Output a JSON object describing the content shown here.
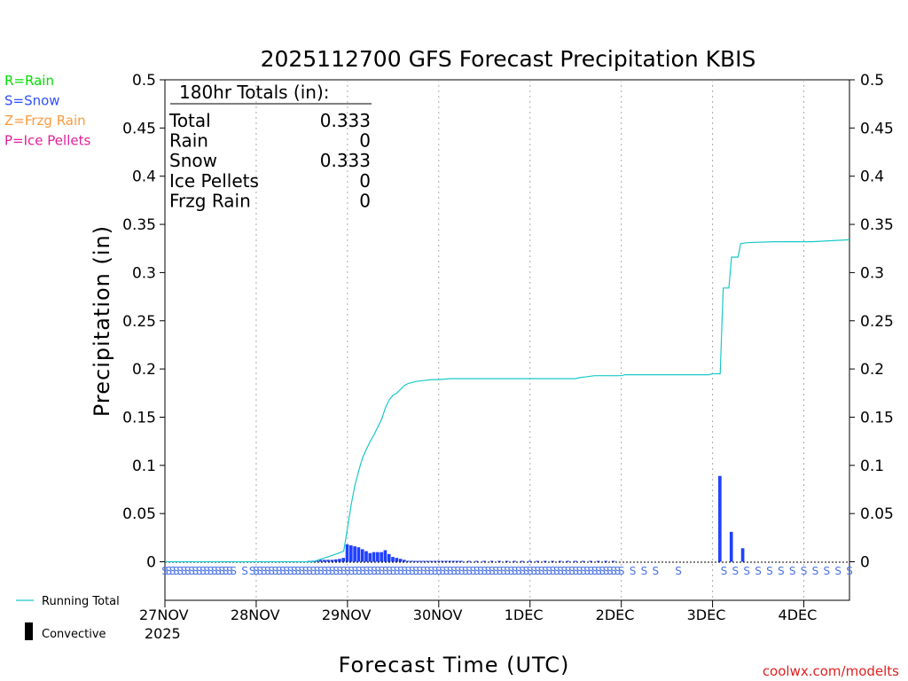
{
  "chart_data": {
    "type": "bar",
    "title": "2025112700 GFS Forecast Precipitation KBIS",
    "xlabel": "Forecast Time (UTC)",
    "ylabel": "Precipitation (in)",
    "ylim": [
      -0.04,
      0.5
    ],
    "xlim_hours": [
      0,
      180
    ],
    "grid": "vertical dotted lines at each day",
    "y_ticks": [
      "0",
      "0.05",
      "0.1",
      "0.15",
      "0.2",
      "0.25",
      "0.3",
      "0.35",
      "0.4",
      "0.45",
      "0.5"
    ],
    "x_ticks": [
      {
        "label": "27NOV",
        "hour": 0
      },
      {
        "label": "28NOV",
        "hour": 24
      },
      {
        "label": "29NOV",
        "hour": 48
      },
      {
        "label": "30NOV",
        "hour": 72
      },
      {
        "label": "1DEC",
        "hour": 96
      },
      {
        "label": "2DEC",
        "hour": 120
      },
      {
        "label": "3DEC",
        "hour": 144
      },
      {
        "label": "4DEC",
        "hour": 168
      }
    ],
    "year_label": "2025",
    "legend_types": [
      {
        "label": "R=Rain",
        "color": "#00e000"
      },
      {
        "label": "S=Snow",
        "color": "#3050ff"
      },
      {
        "label": "Z=Frzg Rain",
        "color": "#ff9a3c"
      },
      {
        "label": "P=Ice Pellets",
        "color": "#e0209a"
      }
    ],
    "legend_lines": [
      {
        "label": "Running Total",
        "color": "#1ac8c8"
      },
      {
        "label": "Convective",
        "color": "#000000"
      }
    ],
    "totals": {
      "header": "180hr Totals (in):",
      "rows": [
        {
          "label": "Total",
          "value": "0.333"
        },
        {
          "label": "Rain",
          "value": "0"
        },
        {
          "label": "Snow",
          "value": "0.333"
        },
        {
          "label": "Ice Pellets",
          "value": "0"
        },
        {
          "label": "Frzg Rain",
          "value": "0"
        }
      ]
    },
    "series": [
      {
        "name": "Snow (hourly precipitation)",
        "color": "#2040ff",
        "bar_width_hours": 1,
        "points": [
          [
            38,
            0.0005
          ],
          [
            39,
            0.001
          ],
          [
            40,
            0.0015
          ],
          [
            41,
            0.002
          ],
          [
            42,
            0.002
          ],
          [
            43,
            0.002
          ],
          [
            44,
            0.002
          ],
          [
            45,
            0.0025
          ],
          [
            46,
            0.003
          ],
          [
            47,
            0.004
          ],
          [
            48,
            0.018
          ],
          [
            49,
            0.017
          ],
          [
            50,
            0.016
          ],
          [
            51,
            0.015
          ],
          [
            52,
            0.013
          ],
          [
            53,
            0.011
          ],
          [
            54,
            0.009
          ],
          [
            55,
            0.01
          ],
          [
            56,
            0.01
          ],
          [
            57,
            0.01
          ],
          [
            58,
            0.012
          ],
          [
            59,
            0.008
          ],
          [
            60,
            0.005
          ],
          [
            61,
            0.004
          ],
          [
            62,
            0.003
          ],
          [
            63,
            0.002
          ],
          [
            64,
            0.001
          ],
          [
            65,
            0.001
          ],
          [
            66,
            0.0005
          ],
          [
            67,
            0.0005
          ],
          [
            68,
            0.0005
          ],
          [
            69,
            0.0005
          ],
          [
            70,
            0.0005
          ],
          [
            71,
            0.0005
          ],
          [
            72,
            0.0005
          ],
          [
            73,
            0.0005
          ],
          [
            74,
            0.0005
          ],
          [
            75,
            0.0005
          ],
          [
            76,
            0.0005
          ],
          [
            77,
            0.0005
          ],
          [
            78,
            0.0005
          ],
          [
            80,
            0.0005
          ],
          [
            82,
            0.0005
          ],
          [
            84,
            0.0005
          ],
          [
            86,
            0.0005
          ],
          [
            88,
            0.0005
          ],
          [
            90,
            0.0005
          ],
          [
            92,
            0.0005
          ],
          [
            94,
            0.0005
          ],
          [
            96,
            0.0005
          ],
          [
            98,
            0.0005
          ],
          [
            100,
            0.0005
          ],
          [
            102,
            0.0005
          ],
          [
            104,
            0.0005
          ],
          [
            106,
            0.0005
          ],
          [
            108,
            0.0005
          ],
          [
            110,
            0.0005
          ],
          [
            112,
            0.0005
          ],
          [
            114,
            0.0005
          ],
          [
            116,
            0.0005
          ],
          [
            118,
            0.0005
          ],
          [
            146,
            0.089
          ],
          [
            149,
            0.031
          ],
          [
            152,
            0.014
          ]
        ]
      },
      {
        "name": "Running Total",
        "color": "#1ac8c8",
        "points": [
          [
            0,
            0
          ],
          [
            39,
            0
          ],
          [
            42,
            0.004
          ],
          [
            45,
            0.008
          ],
          [
            47,
            0.011
          ],
          [
            48,
            0.035
          ],
          [
            49,
            0.06
          ],
          [
            50,
            0.08
          ],
          [
            51,
            0.095
          ],
          [
            52,
            0.108
          ],
          [
            53,
            0.117
          ],
          [
            54,
            0.125
          ],
          [
            55,
            0.132
          ],
          [
            56,
            0.14
          ],
          [
            57,
            0.148
          ],
          [
            58,
            0.16
          ],
          [
            59,
            0.168
          ],
          [
            60,
            0.173
          ],
          [
            61,
            0.175
          ],
          [
            62,
            0.179
          ],
          [
            63,
            0.183
          ],
          [
            64,
            0.185
          ],
          [
            66,
            0.187
          ],
          [
            68,
            0.188
          ],
          [
            70,
            0.189
          ],
          [
            72,
            0.189
          ],
          [
            75,
            0.19
          ],
          [
            90,
            0.19
          ],
          [
            108,
            0.19
          ],
          [
            109,
            0.191
          ],
          [
            111,
            0.192
          ],
          [
            113,
            0.193
          ],
          [
            120,
            0.193
          ],
          [
            121,
            0.194
          ],
          [
            134,
            0.194
          ],
          [
            143,
            0.194
          ],
          [
            144,
            0.195
          ],
          [
            146,
            0.195
          ],
          [
            146.8,
            0.284
          ],
          [
            148.3,
            0.284
          ],
          [
            149,
            0.316
          ],
          [
            150.7,
            0.316
          ],
          [
            151.4,
            0.33
          ],
          [
            153,
            0.331
          ],
          [
            160,
            0.332
          ],
          [
            170,
            0.332
          ],
          [
            180,
            0.334
          ]
        ]
      }
    ],
    "ptype_markers": {
      "color": "#4a72e8",
      "glyph": "S",
      "hours": [
        0,
        1,
        2,
        3,
        4,
        5,
        6,
        7,
        8,
        9,
        10,
        11,
        12,
        13,
        14,
        15,
        16,
        17,
        18,
        21,
        23,
        24,
        25,
        26,
        27,
        28,
        29,
        30,
        31,
        32,
        33,
        34,
        35,
        36,
        37,
        38,
        39,
        40,
        41,
        42,
        43,
        44,
        45,
        46,
        47,
        48,
        49,
        50,
        51,
        52,
        53,
        54,
        55,
        56,
        57,
        58,
        59,
        60,
        61,
        62,
        63,
        64,
        65,
        66,
        67,
        68,
        69,
        70,
        71,
        72,
        73,
        74,
        75,
        76,
        77,
        78,
        79,
        80,
        81,
        82,
        83,
        84,
        85,
        86,
        87,
        88,
        89,
        90,
        91,
        92,
        93,
        94,
        95,
        96,
        97,
        98,
        99,
        100,
        101,
        102,
        103,
        104,
        105,
        106,
        107,
        108,
        109,
        110,
        111,
        112,
        113,
        114,
        115,
        116,
        117,
        118,
        119,
        120,
        123,
        126,
        129,
        135,
        147,
        150,
        153,
        156,
        159,
        162,
        165,
        168,
        171,
        174,
        177,
        180
      ]
    }
  },
  "footer": {
    "credit": "coolwx.com/modelts"
  }
}
